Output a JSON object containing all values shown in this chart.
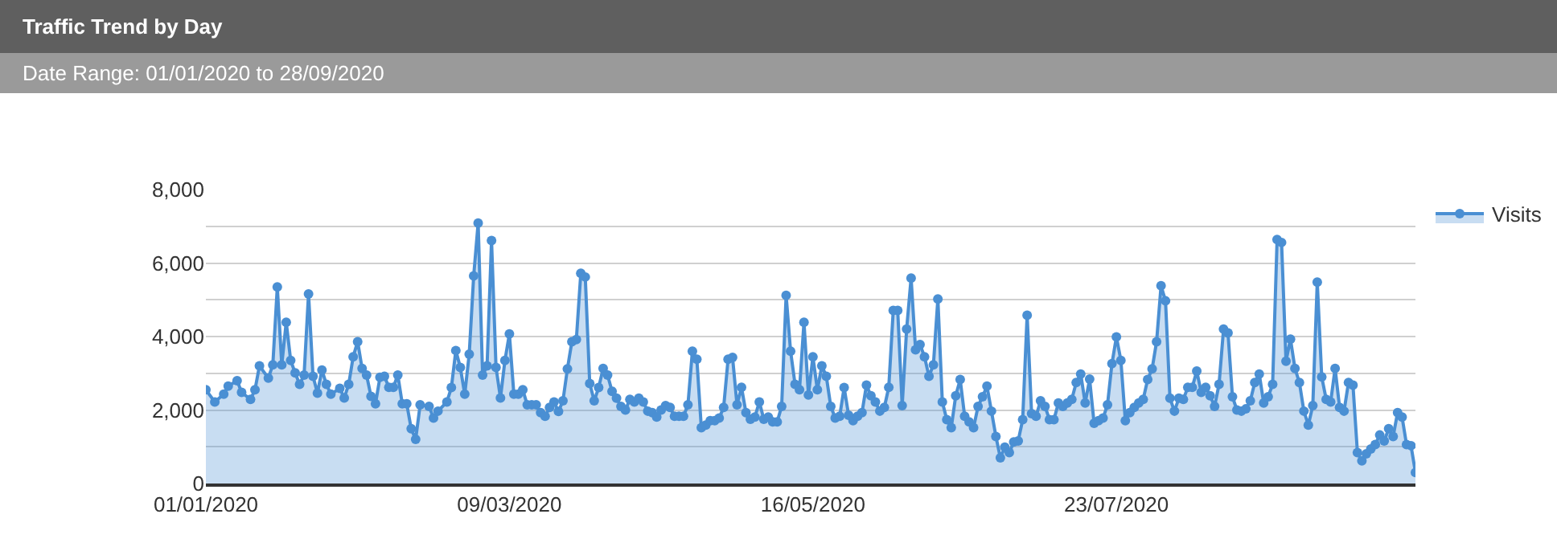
{
  "chart_data": {
    "type": "area",
    "title": "Traffic Trend by Day",
    "subtitle": "Date Range: 01/01/2020 to 28/09/2020",
    "x": [
      "2020-01-01",
      "2020-01-03",
      "2020-01-05",
      "2020-01-06",
      "2020-01-08",
      "2020-01-09",
      "2020-01-11",
      "2020-01-12",
      "2020-01-13",
      "2020-01-15",
      "2020-01-16",
      "2020-01-17",
      "2020-01-18",
      "2020-01-19",
      "2020-01-20",
      "2020-01-21",
      "2020-01-22",
      "2020-01-23",
      "2020-01-24",
      "2020-01-25",
      "2020-01-26",
      "2020-01-27",
      "2020-01-28",
      "2020-01-29",
      "2020-01-31",
      "2020-02-01",
      "2020-02-02",
      "2020-02-03",
      "2020-02-04",
      "2020-02-05",
      "2020-02-06",
      "2020-02-07",
      "2020-02-08",
      "2020-02-09",
      "2020-02-10",
      "2020-02-11",
      "2020-02-12",
      "2020-02-13",
      "2020-02-14",
      "2020-02-15",
      "2020-02-16",
      "2020-02-17",
      "2020-02-18",
      "2020-02-20",
      "2020-02-21",
      "2020-02-22",
      "2020-02-24",
      "2020-02-25",
      "2020-02-26",
      "2020-02-27",
      "2020-02-28",
      "2020-02-29",
      "2020-03-01",
      "2020-03-02",
      "2020-03-03",
      "2020-03-04",
      "2020-03-05",
      "2020-03-06",
      "2020-03-07",
      "2020-03-08",
      "2020-03-09",
      "2020-03-10",
      "2020-03-11",
      "2020-03-12",
      "2020-03-13",
      "2020-03-14",
      "2020-03-15",
      "2020-03-16",
      "2020-03-17",
      "2020-03-18",
      "2020-03-19",
      "2020-03-20",
      "2020-03-21",
      "2020-03-22",
      "2020-03-23",
      "2020-03-24",
      "2020-03-25",
      "2020-03-26",
      "2020-03-27",
      "2020-03-28",
      "2020-03-29",
      "2020-03-30",
      "2020-03-31",
      "2020-04-01",
      "2020-04-02",
      "2020-04-03",
      "2020-04-04",
      "2020-04-05",
      "2020-04-06",
      "2020-04-07",
      "2020-04-08",
      "2020-04-09",
      "2020-04-10",
      "2020-04-11",
      "2020-04-12",
      "2020-04-13",
      "2020-04-14",
      "2020-04-15",
      "2020-04-16",
      "2020-04-17",
      "2020-04-18",
      "2020-04-19",
      "2020-04-20",
      "2020-04-21",
      "2020-04-22",
      "2020-04-23",
      "2020-04-24",
      "2020-04-25",
      "2020-04-26",
      "2020-04-27",
      "2020-04-28",
      "2020-04-29",
      "2020-04-30",
      "2020-05-01",
      "2020-05-02",
      "2020-05-03",
      "2020-05-04",
      "2020-05-05",
      "2020-05-06",
      "2020-05-07",
      "2020-05-08",
      "2020-05-09",
      "2020-05-10",
      "2020-05-11",
      "2020-05-12",
      "2020-05-13",
      "2020-05-14",
      "2020-05-15",
      "2020-05-16",
      "2020-05-17",
      "2020-05-18",
      "2020-05-19",
      "2020-05-20",
      "2020-05-21",
      "2020-05-22",
      "2020-05-23",
      "2020-05-24",
      "2020-05-25",
      "2020-05-26",
      "2020-05-27",
      "2020-05-28",
      "2020-05-29",
      "2020-05-30",
      "2020-05-31",
      "2020-06-01",
      "2020-06-02",
      "2020-06-03",
      "2020-06-04",
      "2020-06-05",
      "2020-06-06",
      "2020-06-07",
      "2020-06-08",
      "2020-06-09",
      "2020-06-10",
      "2020-06-11",
      "2020-06-12",
      "2020-06-13",
      "2020-06-14",
      "2020-06-15",
      "2020-06-16",
      "2020-06-17",
      "2020-06-18",
      "2020-06-19",
      "2020-06-20",
      "2020-06-21",
      "2020-06-22",
      "2020-06-23",
      "2020-06-24",
      "2020-06-25",
      "2020-06-26",
      "2020-06-27",
      "2020-06-28",
      "2020-06-29",
      "2020-06-30",
      "2020-07-01",
      "2020-07-02",
      "2020-07-03",
      "2020-07-04",
      "2020-07-05",
      "2020-07-06",
      "2020-07-07",
      "2020-07-08",
      "2020-07-09",
      "2020-07-10",
      "2020-07-11",
      "2020-07-12",
      "2020-07-13",
      "2020-07-14",
      "2020-07-15",
      "2020-07-16",
      "2020-07-17",
      "2020-07-18",
      "2020-07-19",
      "2020-07-20",
      "2020-07-21",
      "2020-07-22",
      "2020-07-23",
      "2020-07-24",
      "2020-07-25",
      "2020-07-26",
      "2020-07-27",
      "2020-07-28",
      "2020-07-29",
      "2020-07-30",
      "2020-07-31",
      "2020-08-01",
      "2020-08-02",
      "2020-08-03",
      "2020-08-04",
      "2020-08-05",
      "2020-08-06",
      "2020-08-07",
      "2020-08-08",
      "2020-08-09",
      "2020-08-10",
      "2020-08-11",
      "2020-08-12",
      "2020-08-13",
      "2020-08-14",
      "2020-08-15",
      "2020-08-16",
      "2020-08-17",
      "2020-08-18",
      "2020-08-19",
      "2020-08-20",
      "2020-08-21",
      "2020-08-22",
      "2020-08-23",
      "2020-08-24",
      "2020-08-25",
      "2020-08-26",
      "2020-08-27",
      "2020-08-28",
      "2020-08-29",
      "2020-08-30",
      "2020-08-31",
      "2020-09-01",
      "2020-09-02",
      "2020-09-03",
      "2020-09-04",
      "2020-09-05",
      "2020-09-06",
      "2020-09-07",
      "2020-09-08",
      "2020-09-09",
      "2020-09-10",
      "2020-09-11",
      "2020-09-12",
      "2020-09-13",
      "2020-09-14",
      "2020-09-15",
      "2020-09-16",
      "2020-09-17",
      "2020-09-18",
      "2020-09-19",
      "2020-09-20",
      "2020-09-21",
      "2020-09-22",
      "2020-09-23",
      "2020-09-24",
      "2020-09-25",
      "2020-09-26",
      "2020-09-27",
      "2020-09-28"
    ],
    "series": [
      {
        "name": "Visits",
        "color": "#4a8fd3",
        "values": [
          2550,
          2220,
          2430,
          2650,
          2800,
          2480,
          2290,
          2550,
          3200,
          2870,
          3230,
          5350,
          3230,
          4390,
          3350,
          3010,
          2700,
          2950,
          5160,
          2920,
          2460,
          3090,
          2700,
          2430,
          2590,
          2330,
          2700,
          3450,
          3860,
          3130,
          2950,
          2370,
          2170,
          2890,
          2920,
          2620,
          2620,
          2950,
          2170,
          2170,
          1490,
          1200,
          2140,
          2100,
          1780,
          1970,
          2220,
          2610,
          3620,
          3160,
          2430,
          3520,
          5650,
          7090,
          2950,
          3200,
          6610,
          3160,
          2330,
          3350,
          4070,
          2430,
          2430,
          2550,
          2140,
          2140,
          2140,
          1930,
          1830,
          2070,
          2220,
          1960,
          2250,
          3120,
          3860,
          3920,
          5720,
          5620,
          2720,
          2250,
          2610,
          3130,
          2950,
          2510,
          2320,
          2100,
          2000,
          2290,
          2220,
          2320,
          2220,
          1970,
          1930,
          1810,
          2000,
          2120,
          2070,
          1830,
          1830,
          1830,
          2140,
          3600,
          3380,
          1520,
          1590,
          1710,
          1710,
          1780,
          2070,
          3380,
          3430,
          2140,
          2620,
          1930,
          1750,
          1810,
          2220,
          1750,
          1810,
          1680,
          1680,
          2100,
          5120,
          3600,
          2700,
          2550,
          4390,
          2410,
          3450,
          2550,
          3200,
          2920,
          2100,
          1780,
          1830,
          2610,
          1860,
          1710,
          1830,
          1930,
          2680,
          2390,
          2220,
          1970,
          2070,
          2620,
          4710,
          4710,
          2120,
          4200,
          5590,
          3640,
          3780,
          3450,
          2920,
          3230,
          5020,
          2220,
          1740,
          1520,
          2390,
          2830,
          1830,
          1680,
          1520,
          2100,
          2360,
          2650,
          1970,
          1280,
          700,
          990,
          840,
          1130,
          1160,
          1740,
          4580,
          1900,
          1830,
          2250,
          2100,
          1740,
          1740,
          2190,
          2100,
          2190,
          2290,
          2750,
          2980,
          2190,
          2840,
          1640,
          1710,
          1780,
          2140,
          3260,
          3990,
          3350,
          1710,
          1930,
          2070,
          2190,
          2290,
          2830,
          3120,
          3860,
          5380,
          4970,
          2320,
          1970,
          2320,
          2290,
          2620,
          2620,
          3060,
          2480,
          2620,
          2390,
          2100,
          2700,
          4200,
          4100,
          2360,
          2000,
          1970,
          2030,
          2250,
          2750,
          2980,
          2190,
          2360,
          2700,
          6640,
          6560,
          3330,
          3930,
          3130,
          2750,
          1970,
          1590,
          2120,
          5480,
          2900,
          2290,
          2220,
          3130,
          2070,
          1970,
          2750,
          2680,
          840,
          620,
          810,
          940,
          1060,
          1320,
          1160,
          1490,
          1280,
          1930,
          1810,
          1060,
          1030,
          300
        ]
      }
    ],
    "xlim": [
      "2020-01-01",
      "2020-09-28"
    ],
    "xticks": [
      {
        "value": "2020-01-01",
        "label": "01/01/2020"
      },
      {
        "value": "2020-03-09",
        "label": "09/03/2020"
      },
      {
        "value": "2020-05-16",
        "label": "16/05/2020"
      },
      {
        "value": "2020-07-23",
        "label": "23/07/2020"
      }
    ],
    "ylim": [
      0,
      8000
    ],
    "yticks": [
      0,
      {
        "value": 1000,
        "label": null
      },
      {
        "value": 2000,
        "label": "2,000"
      },
      {
        "value": 3000,
        "label": null
      },
      {
        "value": 4000,
        "label": "4,000"
      },
      {
        "value": 5000,
        "label": null
      },
      {
        "value": 6000,
        "label": "6,000"
      },
      {
        "value": 7000,
        "label": null
      },
      {
        "value": 8000,
        "label": "8,000"
      }
    ],
    "grid": "y",
    "legend": "top right",
    "marker": "circle",
    "line_style": "solid"
  }
}
